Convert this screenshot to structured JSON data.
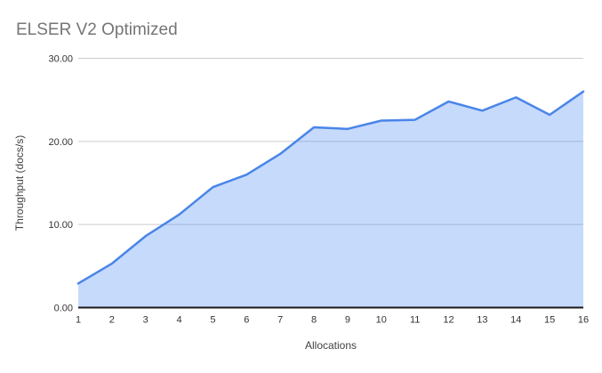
{
  "chart_data": {
    "type": "area",
    "title": "ELSER V2 Optimized",
    "xlabel": "Allocations",
    "ylabel": "Throughput (docs/s)",
    "x": [
      1,
      2,
      3,
      4,
      5,
      6,
      7,
      8,
      9,
      10,
      11,
      12,
      13,
      14,
      15,
      16
    ],
    "series": [
      {
        "name": "Throughput (docs/s)",
        "values": [
          2.9,
          5.3,
          8.6,
          11.2,
          14.5,
          16.0,
          18.5,
          21.7,
          21.5,
          22.5,
          22.6,
          24.8,
          23.7,
          25.3,
          23.2,
          26.0
        ]
      }
    ],
    "xlim": [
      1,
      16
    ],
    "ylim": [
      0,
      30
    ],
    "yticks": [
      0,
      10,
      20,
      30
    ],
    "ytick_labels": [
      "0.00",
      "10.00",
      "20.00",
      "30.00"
    ],
    "xtick_labels": [
      "1",
      "2",
      "3",
      "4",
      "5",
      "6",
      "7",
      "8",
      "9",
      "10",
      "11",
      "12",
      "13",
      "14",
      "15",
      "16"
    ],
    "grid": true,
    "legend": false,
    "colors": {
      "line": "#4a85e8",
      "fill": "rgba(66,133,244,0.30)",
      "gridline": "#cccccc",
      "axis_line": "#1a1a1a",
      "title": "#757575",
      "tick_label": "#333333",
      "axis_title": "#424242",
      "background": "#ffffff"
    }
  }
}
